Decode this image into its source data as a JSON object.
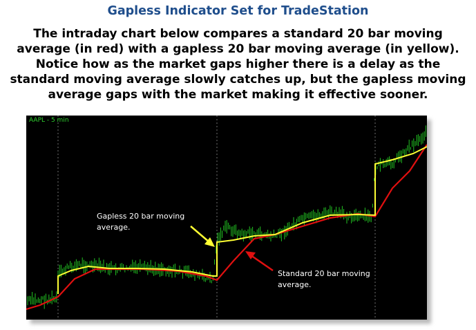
{
  "page": {
    "title": "Gapless Indicator Set for TradeStation",
    "description": "The intraday chart below compares a standard 20 bar moving average (in red) with a gapless 20 bar moving average (in yellow). Notice how as the market gaps higher there is a delay as the standard moving average slowly catches up, but the gapless moving average gaps with the market making it effective sooner."
  },
  "chart": {
    "symbol_label": "AAPL - 5 min",
    "annotations": {
      "gapless_line1": "Gapless 20 bar moving",
      "gapless_line2": "average.",
      "standard_line1": "Standard 20 bar moving",
      "standard_line2": "average."
    },
    "colors": {
      "background": "#000000",
      "price_bars": "#22c322",
      "standard_ma": "#e01010",
      "gapless_ma": "#ffff33",
      "arrow_gapless": "#ffff33",
      "arrow_standard": "#e01010",
      "session_divider": "#808080"
    }
  }
}
